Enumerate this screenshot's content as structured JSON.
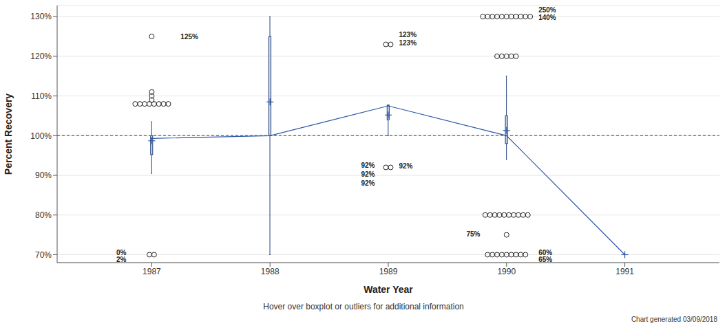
{
  "chart_data": {
    "type": "boxplot",
    "x_label": "Water Year",
    "y_label": "Percent Recovery",
    "footnote": "Hover over boxplot or outliers for additional information",
    "caption": "Chart generated 03/09/2018",
    "categories": [
      "1987",
      "1988",
      "1989",
      "1990",
      "1991"
    ],
    "xlim": [
      -0.8,
      4.8
    ],
    "ylim": [
      68,
      132.8
    ],
    "yticks": [
      {
        "value": 70,
        "label": "70%"
      },
      {
        "value": 80,
        "label": "80%"
      },
      {
        "value": 90,
        "label": "90%"
      },
      {
        "value": 100,
        "label": "100%"
      },
      {
        "value": 110,
        "label": "110%"
      },
      {
        "value": 120,
        "label": "120%"
      },
      {
        "value": 130,
        "label": "130%"
      }
    ],
    "grid": true,
    "reference_line": 100,
    "color": "#c9d5e5",
    "boxes": [
      {
        "whisker_low": 90.5,
        "q1": 95.2,
        "median": 99.3,
        "q3": 100,
        "whisker_high": 103.5,
        "mean": 98.7,
        "outliers": [
          125,
          111,
          110,
          109,
          108,
          108,
          108,
          108,
          108,
          108,
          108,
          108,
          70,
          70
        ]
      },
      {
        "whisker_low": 70,
        "q1": 100,
        "median": 100,
        "q3": 125,
        "whisker_high": 130,
        "mean": 108.5,
        "outliers": []
      },
      {
        "whisker_low": 100,
        "q1": 104,
        "median": 107.5,
        "q3": 107.7,
        "whisker_high": 107.7,
        "mean": 105.2,
        "outliers": [
          123,
          123,
          92,
          92
        ]
      },
      {
        "whisker_low": 94,
        "q1": 98,
        "median": 100,
        "q3": 105,
        "whisker_high": 115,
        "mean": 101.3,
        "outliers": [
          130,
          130,
          130,
          130,
          130,
          130,
          130,
          130,
          130,
          130,
          130,
          120,
          120,
          120,
          120,
          120,
          80,
          80,
          80,
          80,
          80,
          80,
          80,
          80,
          80,
          80,
          75,
          70,
          70,
          70,
          70,
          70,
          70,
          70,
          70,
          70
        ]
      },
      {
        "whisker_low": 70,
        "q1": 70,
        "median": 70,
        "q3": 70,
        "whisker_high": 70,
        "mean": 70,
        "outliers": []
      }
    ],
    "annotations": [
      {
        "text": "125%",
        "x": 0.244,
        "y": 125
      },
      {
        "text": "0%",
        "x": -0.3,
        "y": 70.5
      },
      {
        "text": "2%",
        "x": -0.3,
        "y": 68.7
      },
      {
        "text": "123%",
        "x": 2.09,
        "y": 125.5
      },
      {
        "text": "123%",
        "x": 2.09,
        "y": 123.3
      },
      {
        "text": "92%",
        "x": 1.77,
        "y": 92.5
      },
      {
        "text": "92%",
        "x": 1.77,
        "y": 90.2
      },
      {
        "text": "92%",
        "x": 1.77,
        "y": 88
      },
      {
        "text": "92%",
        "x": 2.09,
        "y": 92.3
      },
      {
        "text": "75%",
        "x": 2.66,
        "y": 75.2
      },
      {
        "text": "250%",
        "x": 3.27,
        "y": 131.6
      },
      {
        "text": "140%",
        "x": 3.27,
        "y": 129.8
      },
      {
        "text": "60%",
        "x": 3.27,
        "y": 70.5
      },
      {
        "text": "65%",
        "x": 3.27,
        "y": 68.7
      }
    ]
  }
}
